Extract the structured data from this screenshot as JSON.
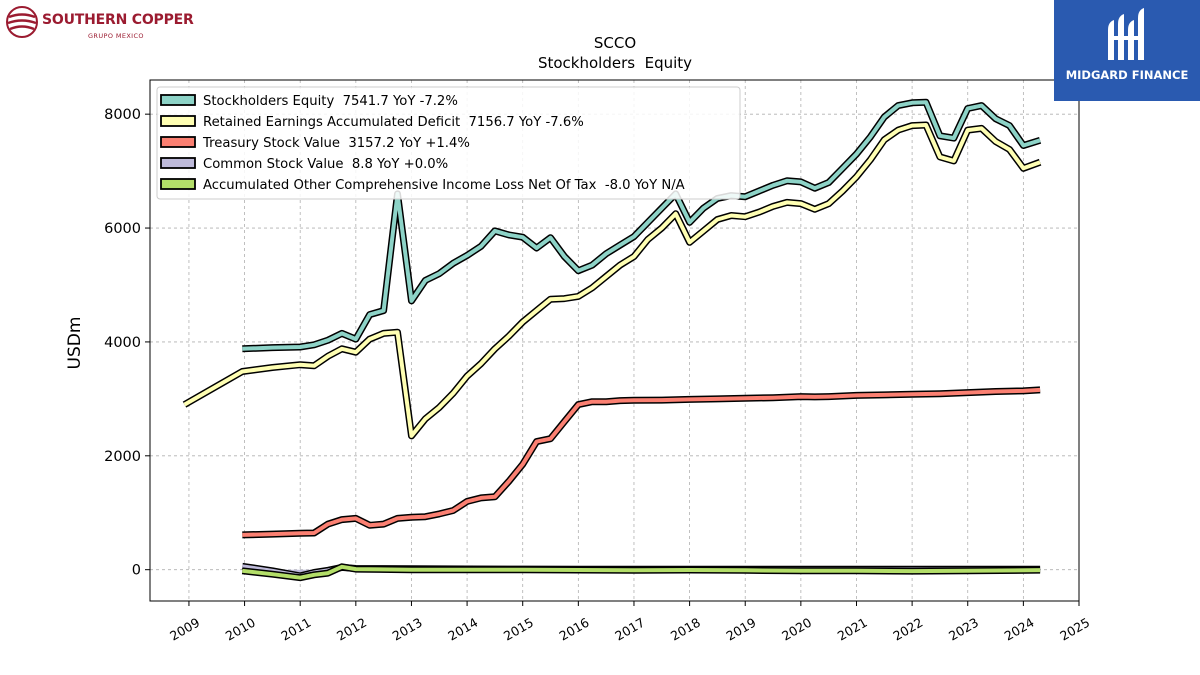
{
  "logos": {
    "left": {
      "brand": "SOUTHERN COPPER",
      "sub": "GRUPO MEXICO",
      "color": "#9b1b30"
    },
    "right": {
      "text": "MIDGARD FINANCE",
      "bg": "#2a5ab0"
    }
  },
  "chart_data": {
    "type": "line",
    "title": "SCCO",
    "subtitle": "Stockholders  Equity",
    "ylabel": "USDm",
    "xlabel": "",
    "xlim": [
      2008.3,
      2025.0
    ],
    "ylim": [
      -550,
      8600
    ],
    "yticks": [
      0,
      2000,
      4000,
      6000,
      8000
    ],
    "xticks": [
      2009,
      2010,
      2011,
      2012,
      2013,
      2014,
      2015,
      2016,
      2017,
      2018,
      2019,
      2020,
      2021,
      2022,
      2023,
      2024,
      2025
    ],
    "grid": true,
    "legend_placement": "top-left",
    "series": [
      {
        "name": "Stockholders Equity  7541.7 YoY -7.2%",
        "color": "#8dd3c7",
        "points": [
          [
            2009.96,
            3880
          ],
          [
            2010.5,
            3900
          ],
          [
            2011.0,
            3910
          ],
          [
            2011.25,
            3950
          ],
          [
            2011.5,
            4030
          ],
          [
            2011.75,
            4150
          ],
          [
            2012.0,
            4050
          ],
          [
            2012.25,
            4480
          ],
          [
            2012.5,
            4550
          ],
          [
            2012.75,
            6600
          ],
          [
            2013.0,
            4720
          ],
          [
            2013.25,
            5080
          ],
          [
            2013.5,
            5200
          ],
          [
            2013.75,
            5380
          ],
          [
            2014.0,
            5520
          ],
          [
            2014.25,
            5680
          ],
          [
            2014.5,
            5950
          ],
          [
            2014.75,
            5880
          ],
          [
            2015.0,
            5840
          ],
          [
            2015.25,
            5650
          ],
          [
            2015.5,
            5830
          ],
          [
            2015.75,
            5500
          ],
          [
            2016.0,
            5250
          ],
          [
            2016.25,
            5350
          ],
          [
            2016.5,
            5550
          ],
          [
            2016.75,
            5700
          ],
          [
            2017.0,
            5850
          ],
          [
            2017.25,
            6100
          ],
          [
            2017.5,
            6350
          ],
          [
            2017.75,
            6600
          ],
          [
            2018.0,
            6100
          ],
          [
            2018.25,
            6350
          ],
          [
            2018.5,
            6520
          ],
          [
            2018.75,
            6570
          ],
          [
            2019.0,
            6550
          ],
          [
            2019.25,
            6650
          ],
          [
            2019.5,
            6750
          ],
          [
            2019.75,
            6830
          ],
          [
            2020.0,
            6810
          ],
          [
            2020.25,
            6700
          ],
          [
            2020.5,
            6800
          ],
          [
            2020.75,
            7050
          ],
          [
            2021.0,
            7300
          ],
          [
            2021.25,
            7600
          ],
          [
            2021.5,
            7950
          ],
          [
            2021.75,
            8150
          ],
          [
            2022.0,
            8200
          ],
          [
            2022.25,
            8210
          ],
          [
            2022.5,
            7620
          ],
          [
            2022.75,
            7580
          ],
          [
            2023.0,
            8100
          ],
          [
            2023.25,
            8150
          ],
          [
            2023.5,
            7920
          ],
          [
            2023.75,
            7800
          ],
          [
            2024.0,
            7450
          ],
          [
            2024.3,
            7541.7
          ]
        ]
      },
      {
        "name": "Retained Earnings Accumulated Deficit  7156.7 YoY -7.6%",
        "color": "#ffffb3",
        "points": [
          [
            2008.92,
            2900
          ],
          [
            2009.96,
            3480
          ],
          [
            2010.5,
            3550
          ],
          [
            2011.0,
            3600
          ],
          [
            2011.25,
            3580
          ],
          [
            2011.5,
            3750
          ],
          [
            2011.75,
            3880
          ],
          [
            2012.0,
            3820
          ],
          [
            2012.25,
            4050
          ],
          [
            2012.5,
            4150
          ],
          [
            2012.75,
            4170
          ],
          [
            2013.0,
            2350
          ],
          [
            2013.25,
            2650
          ],
          [
            2013.5,
            2850
          ],
          [
            2013.75,
            3100
          ],
          [
            2014.0,
            3400
          ],
          [
            2014.25,
            3620
          ],
          [
            2014.5,
            3880
          ],
          [
            2014.75,
            4100
          ],
          [
            2015.0,
            4350
          ],
          [
            2015.25,
            4550
          ],
          [
            2015.5,
            4750
          ],
          [
            2015.75,
            4760
          ],
          [
            2016.0,
            4800
          ],
          [
            2016.25,
            4950
          ],
          [
            2016.5,
            5150
          ],
          [
            2016.75,
            5350
          ],
          [
            2017.0,
            5500
          ],
          [
            2017.25,
            5800
          ],
          [
            2017.5,
            6000
          ],
          [
            2017.75,
            6250
          ],
          [
            2018.0,
            5750
          ],
          [
            2018.25,
            5950
          ],
          [
            2018.5,
            6150
          ],
          [
            2018.75,
            6220
          ],
          [
            2019.0,
            6200
          ],
          [
            2019.25,
            6280
          ],
          [
            2019.5,
            6380
          ],
          [
            2019.75,
            6450
          ],
          [
            2020.0,
            6430
          ],
          [
            2020.25,
            6330
          ],
          [
            2020.5,
            6430
          ],
          [
            2020.75,
            6650
          ],
          [
            2021.0,
            6900
          ],
          [
            2021.25,
            7200
          ],
          [
            2021.5,
            7550
          ],
          [
            2021.75,
            7720
          ],
          [
            2022.0,
            7800
          ],
          [
            2022.25,
            7810
          ],
          [
            2022.5,
            7250
          ],
          [
            2022.75,
            7180
          ],
          [
            2023.0,
            7720
          ],
          [
            2023.25,
            7750
          ],
          [
            2023.5,
            7520
          ],
          [
            2023.75,
            7380
          ],
          [
            2024.0,
            7050
          ],
          [
            2024.3,
            7156.7
          ]
        ]
      },
      {
        "name": "Treasury Stock Value  3157.2 YoY +1.4%",
        "color": "#fb8072",
        "points": [
          [
            2009.96,
            610
          ],
          [
            2010.5,
            625
          ],
          [
            2011.0,
            640
          ],
          [
            2011.25,
            645
          ],
          [
            2011.5,
            800
          ],
          [
            2011.75,
            880
          ],
          [
            2012.0,
            900
          ],
          [
            2012.25,
            780
          ],
          [
            2012.5,
            800
          ],
          [
            2012.75,
            900
          ],
          [
            2013.0,
            920
          ],
          [
            2013.25,
            930
          ],
          [
            2013.5,
            980
          ],
          [
            2013.75,
            1040
          ],
          [
            2014.0,
            1200
          ],
          [
            2014.25,
            1260
          ],
          [
            2014.5,
            1280
          ],
          [
            2014.75,
            1550
          ],
          [
            2015.0,
            1850
          ],
          [
            2015.25,
            2250
          ],
          [
            2015.5,
            2300
          ],
          [
            2015.75,
            2600
          ],
          [
            2016.0,
            2900
          ],
          [
            2016.25,
            2950
          ],
          [
            2016.5,
            2950
          ],
          [
            2016.75,
            2970
          ],
          [
            2017.0,
            2975
          ],
          [
            2017.5,
            2978
          ],
          [
            2018.0,
            2990
          ],
          [
            2018.5,
            3000
          ],
          [
            2019.0,
            3010
          ],
          [
            2019.5,
            3020
          ],
          [
            2020.0,
            3040
          ],
          [
            2020.25,
            3035
          ],
          [
            2020.5,
            3040
          ],
          [
            2021.0,
            3060
          ],
          [
            2021.5,
            3070
          ],
          [
            2022.0,
            3080
          ],
          [
            2022.5,
            3090
          ],
          [
            2023.0,
            3110
          ],
          [
            2023.5,
            3130
          ],
          [
            2024.0,
            3140
          ],
          [
            2024.3,
            3157.2
          ]
        ]
      },
      {
        "name": "Common Stock Value  8.8 YoY +0.0%",
        "color": "#bebada",
        "points": [
          [
            2009.96,
            60
          ],
          [
            2010.5,
            -20
          ],
          [
            2011.0,
            -110
          ],
          [
            2011.25,
            -50
          ],
          [
            2011.5,
            -10
          ],
          [
            2011.75,
            40
          ],
          [
            2012.0,
            20
          ],
          [
            2013.0,
            15
          ],
          [
            2014.0,
            12
          ],
          [
            2015.0,
            10
          ],
          [
            2016.0,
            9
          ],
          [
            2017.0,
            9
          ],
          [
            2018.0,
            8.8
          ],
          [
            2019.0,
            8.8
          ],
          [
            2020.0,
            8.8
          ],
          [
            2021.0,
            8.8
          ],
          [
            2022.0,
            8.8
          ],
          [
            2023.0,
            8.8
          ],
          [
            2024.3,
            8.8
          ]
        ]
      },
      {
        "name": "Accumulated Other Comprehensive Income Loss Net Of Tax  -8.0 YoY N/A",
        "color": "#b3de69",
        "points": [
          [
            2009.96,
            -20
          ],
          [
            2010.5,
            -80
          ],
          [
            2011.0,
            -140
          ],
          [
            2011.25,
            -90
          ],
          [
            2011.5,
            -60
          ],
          [
            2011.75,
            50
          ],
          [
            2012.0,
            10
          ],
          [
            2013.0,
            0
          ],
          [
            2014.0,
            0
          ],
          [
            2015.0,
            0
          ],
          [
            2016.0,
            -5
          ],
          [
            2017.0,
            -10
          ],
          [
            2018.0,
            -5
          ],
          [
            2019.0,
            -10
          ],
          [
            2020.0,
            -20
          ],
          [
            2021.0,
            -20
          ],
          [
            2022.0,
            -25
          ],
          [
            2023.0,
            -20
          ],
          [
            2024.3,
            -8.0
          ]
        ]
      }
    ]
  }
}
